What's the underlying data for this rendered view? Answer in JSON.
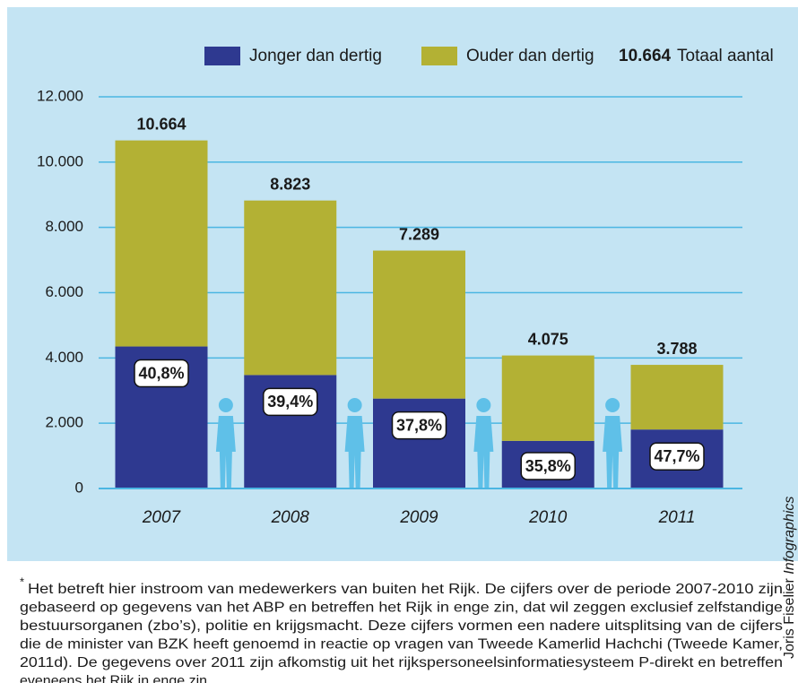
{
  "chart_data": {
    "type": "stacked_bar",
    "categories": [
      "2007",
      "2008",
      "2009",
      "2010",
      "2011"
    ],
    "series": [
      {
        "name": "Jonger dan dertig",
        "color": "#2e3990",
        "values": [
          4351,
          3476,
          2755,
          1459,
          1807
        ]
      },
      {
        "name": "Ouder dan dertig",
        "color": "#b3b134",
        "values": [
          6313,
          5347,
          4534,
          2616,
          1981
        ]
      }
    ],
    "shares": {
      "values": [
        40.8,
        39.4,
        37.8,
        35.8,
        47.7
      ],
      "value_labels": [
        "40,8%",
        "39,4%",
        "37,8%",
        "35,8%",
        "47,7%"
      ]
    },
    "totals": {
      "values": [
        10664,
        8823,
        7289,
        4075,
        3788
      ],
      "value_labels": [
        "10.664",
        "8.823",
        "7.289",
        "4.075",
        "3.788"
      ]
    },
    "total_legend": {
      "sample": "10.664",
      "name": "Totaal aantal"
    },
    "ylim": [
      0,
      12000
    ],
    "yticks": [
      0,
      {
        "value": 2000,
        "label": "2.000"
      },
      {
        "value": 4000,
        "label": "4.000"
      },
      {
        "value": 6000,
        "label": "6.000"
      },
      {
        "value": 8000,
        "label": "8.000"
      },
      {
        "value": 10000,
        "label": "10.000"
      },
      {
        "value": 12000,
        "label": "12.000"
      }
    ],
    "grid": true,
    "grid_color": "#4bb6e2",
    "background": "#c4e4f3",
    "footnote": {
      "marker": "*",
      "lines": [
        "Het betreft hier instroom van medewerkers van buiten het Rijk. De cijfers over de periode 2007-2010 zijn",
        "gebaseerd op gegevens van het ABP en betreffen het Rijk in enge zin, dat wil zeggen exclusief zelfstandige",
        "bestuursorganen (zbo’s), politie en krijgsmacht. Deze cijfers vormen een nadere uitsplitsing van de cijfers",
        "die de minister van BZK heeft genoemd in reactie op vragen van Tweede Kamerlid Hachchi (Tweede Kamer,",
        "2011d). De gegevens over 2011 zijn afkomstig uit het rijkspersoneelsinformatiesysteem P-direkt en betreffen",
        "eveneens het Rijk in enge zin."
      ]
    },
    "credit": {
      "name": "Joris Fiselier",
      "agency": "Infographics"
    }
  }
}
